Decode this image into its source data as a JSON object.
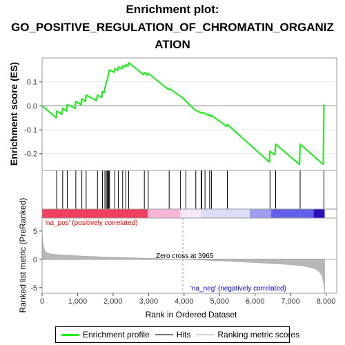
{
  "title": [
    "Enrichment plot:",
    "GO_POSITIVE_REGULATION_OF_CHROMATIN_ORGANIZ",
    "ATION"
  ],
  "colors": {
    "profile": "#22ee22",
    "hits": "#000000",
    "ranking_fill": "#b8b8b8",
    "pos_label": "#ff0000",
    "neg_label": "#0000ff"
  },
  "chart_data": [
    {
      "type": "line",
      "panel": "enrichment",
      "ylabel": "Enrichment score (ES)",
      "ylim": [
        -0.27,
        0.2
      ],
      "yticks": [
        -0.2,
        -0.1,
        0.0,
        0.1
      ],
      "ytick_labels": [
        "-0.2",
        "-0.1",
        "0.0",
        "0.1"
      ],
      "xlim": [
        0,
        8300
      ],
      "series": [
        {
          "name": "Enrichment profile",
          "x": [
            0,
            400,
            410,
            560,
            580,
            690,
            710,
            930,
            950,
            1100,
            1120,
            1220,
            1240,
            1530,
            1560,
            1680,
            1700,
            1750,
            1770,
            1790,
            1810,
            1840,
            1860,
            1880,
            1900,
            2030,
            2050,
            2130,
            2150,
            2250,
            2270,
            2340,
            2360,
            2420,
            2440,
            2860,
            2880,
            2970,
            2990,
            3560,
            3580,
            3900,
            4050,
            4330,
            4350,
            4480,
            4500,
            4560,
            4590,
            4700,
            4720,
            4750,
            4770,
            5200,
            5220,
            6400,
            6420,
            6560,
            6580,
            7250,
            7270,
            7920,
            7940
          ],
          "y": [
            0.0,
            -0.05,
            -0.022,
            -0.035,
            -0.01,
            -0.022,
            0.005,
            -0.01,
            0.018,
            0.005,
            0.03,
            0.018,
            0.045,
            0.022,
            0.045,
            0.035,
            0.06,
            0.055,
            0.075,
            0.085,
            0.1,
            0.11,
            0.125,
            0.14,
            0.15,
            0.14,
            0.155,
            0.148,
            0.162,
            0.155,
            0.168,
            0.162,
            0.172,
            0.166,
            0.18,
            0.13,
            0.14,
            0.128,
            0.136,
            0.068,
            0.072,
            0.04,
            0.02,
            -0.02,
            -0.02,
            -0.03,
            -0.028,
            -0.03,
            -0.032,
            -0.04,
            -0.037,
            -0.045,
            -0.04,
            -0.085,
            -0.078,
            -0.235,
            -0.19,
            -0.205,
            -0.16,
            -0.245,
            -0.16,
            -0.245,
            0.005
          ]
        }
      ]
    },
    {
      "type": "scatter",
      "panel": "hits",
      "series": [
        {
          "name": "Hits",
          "x": [
            410,
            580,
            710,
            950,
            1120,
            1240,
            1560,
            1700,
            1770,
            1810,
            1840,
            1860,
            1880,
            1900,
            2050,
            2150,
            2270,
            2360,
            2440,
            2880,
            2990,
            3580,
            3900,
            4050,
            4330,
            4480,
            4500,
            4590,
            4720,
            4770,
            5220,
            6420,
            6580,
            7270,
            7940
          ]
        }
      ]
    },
    {
      "type": "heatmap",
      "panel": "ranking-bar",
      "xlim": [
        0,
        8300
      ],
      "segments": [
        {
          "x": [
            0,
            2980
          ],
          "color": "#f23e5f"
        },
        {
          "x": [
            2980,
            3900
          ],
          "color": "#f9b6d8"
        },
        {
          "x": [
            3900,
            4500
          ],
          "color": "#f7e8f8"
        },
        {
          "x": [
            4500,
            5850
          ],
          "color": "#dcdcf7"
        },
        {
          "x": [
            5850,
            6450
          ],
          "color": "#9f9fee"
        },
        {
          "x": [
            6450,
            7650
          ],
          "color": "#6060e8"
        },
        {
          "x": [
            7650,
            7960
          ],
          "color": "#2a10bf"
        }
      ]
    },
    {
      "type": "area",
      "panel": "ranked-metric",
      "xlabel": "Rank in Ordered Dataset",
      "ylabel": "Ranked list metric (PreRanked)",
      "ylim": [
        -6,
        7.3
      ],
      "yticks": [
        -5,
        0,
        5
      ],
      "ytick_labels": [
        "-5",
        "0",
        "5"
      ],
      "xticks": [
        0,
        1000,
        2000,
        3000,
        4000,
        5000,
        6000,
        7000,
        8000
      ],
      "xtick_labels": [
        "0",
        "1,000",
        "2,000",
        "3,000",
        "4,000",
        "5,000",
        "6,000",
        "7,000",
        "8,000"
      ],
      "xlim": [
        0,
        8300
      ],
      "zero_cross": 3965,
      "zero_cross_label": "Zero cross at 3965",
      "pos_label": "'na_pos' (positively correlated)",
      "neg_label": "'na_neg' (negatively correlated)",
      "series": [
        {
          "name": "Ranking metric scores",
          "x": [
            0,
            15,
            40,
            80,
            150,
            250,
            400,
            600,
            1000,
            1500,
            2000,
            2500,
            3000,
            3500,
            3965,
            4500,
            5000,
            5500,
            6000,
            6500,
            7000,
            7300,
            7500,
            7650,
            7750,
            7820,
            7870,
            7910,
            7940,
            7960
          ],
          "y": [
            5.0,
            3.5,
            2.2,
            1.5,
            1.1,
            0.95,
            0.85,
            0.75,
            0.62,
            0.48,
            0.38,
            0.28,
            0.18,
            0.08,
            0.0,
            -0.12,
            -0.28,
            -0.42,
            -0.58,
            -0.75,
            -0.95,
            -1.15,
            -1.35,
            -1.6,
            -1.9,
            -2.3,
            -2.8,
            -3.5,
            -4.6,
            -6.0
          ]
        }
      ]
    }
  ],
  "legend": {
    "profile_label": "Enrichment profile",
    "hits_label": "Hits",
    "ranking_label": "Ranking metric scores"
  }
}
